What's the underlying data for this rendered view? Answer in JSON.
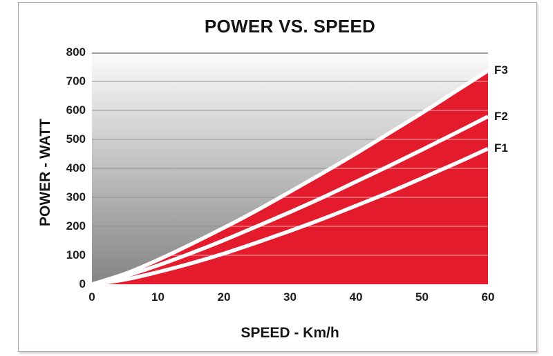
{
  "title": "POWER VS. SPEED",
  "x_axis": {
    "label": "SPEED - Km/h",
    "ticks": [
      "0",
      "10",
      "20",
      "30",
      "40",
      "50",
      "60"
    ]
  },
  "y_axis": {
    "label": "POWER - WATT",
    "ticks": [
      "800",
      "700",
      "600",
      "500",
      "400",
      "300",
      "200",
      "100",
      "0"
    ]
  },
  "series_end_labels": [
    "F3",
    "F2",
    "F1"
  ],
  "colors": {
    "accent_red": "#E31B2C",
    "curve_white": "#FFFFFF",
    "grid_gray": "#949494",
    "grid_top_line": "#7d7d7d",
    "grid_over_red": "rgba(255,255,255,0.5)",
    "frame_gray": "#A6A6A6",
    "bg_gradient_top": "#FBFBFB",
    "bg_gradient_bottom": "#848484",
    "text_black": "#141414"
  },
  "chart_data": {
    "type": "area",
    "title": "POWER VS. SPEED",
    "xlabel": "SPEED - Km/h",
    "ylabel": "POWER - WATT",
    "xlim": [
      0,
      60
    ],
    "ylim": [
      0,
      800
    ],
    "x_tick_step": 10,
    "y_tick_step": 100,
    "grid": true,
    "legend_position": "curve-end-labels-right",
    "plot_background": "vertical gray gradient, light at top to dark at bottom",
    "area_fill": "red fill under topmost curve F3; curves drawn as thick white lines",
    "x": [
      0,
      5,
      10,
      15,
      20,
      25,
      30,
      35,
      40,
      45,
      50,
      55,
      60
    ],
    "series": [
      {
        "name": "F1",
        "values": [
          0,
          16,
          42,
          72,
          106,
          144,
          184,
          226,
          271,
          317,
          366,
          416,
          468
        ]
      },
      {
        "name": "F2",
        "values": [
          0,
          28,
          65,
          107,
          152,
          200,
          249,
          300,
          354,
          408,
          464,
          521,
          579
        ]
      },
      {
        "name": "F3",
        "values": [
          0,
          36,
          84,
          138,
          195,
          255,
          319,
          384,
          451,
          521,
          591,
          664,
          737
        ]
      }
    ]
  }
}
